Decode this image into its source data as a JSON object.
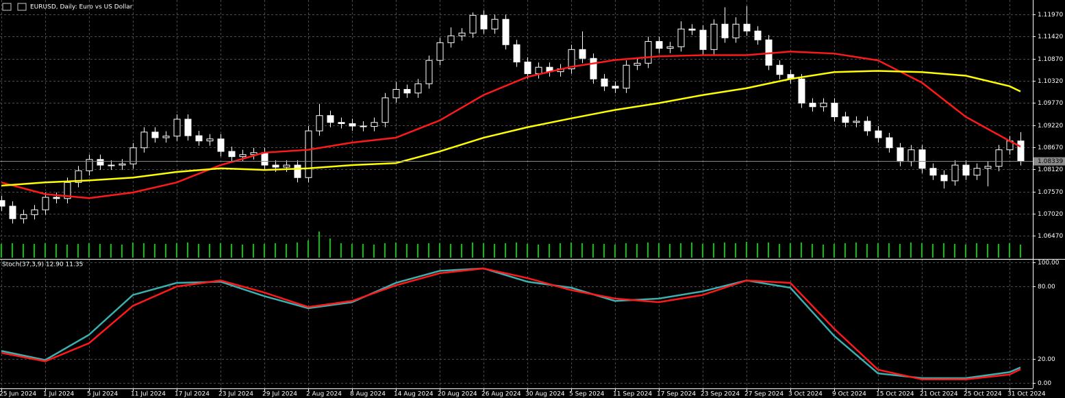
{
  "chart_data": [
    {
      "type": "candlestick",
      "title": "EURUSD, Daily:  Euro vs US Dollar",
      "categories": [
        "25 Jun 2024",
        null,
        null,
        null,
        "1 Jul 2024",
        null,
        null,
        null,
        "5 Jul 2024",
        null,
        null,
        null,
        "11 Jul 2024",
        null,
        null,
        null,
        "17 Jul 2024",
        null,
        null,
        null,
        "23 Jul 2024",
        null,
        null,
        null,
        "29 Jul 2024",
        null,
        null,
        null,
        "2 Aug 2024",
        null,
        null,
        null,
        "8 Aug 2024",
        null,
        null,
        null,
        "14 Aug 2024",
        null,
        null,
        null,
        "20 Aug 2024",
        null,
        null,
        null,
        "26 Aug 2024",
        null,
        null,
        null,
        "30 Aug 2024",
        null,
        null,
        null,
        "5 Sep 2024",
        null,
        null,
        null,
        "11 Sep 2024",
        null,
        null,
        null,
        "17 Sep 2024",
        null,
        null,
        null,
        "23 Sep 2024",
        null,
        null,
        null,
        "27 Sep 2024",
        null,
        null,
        null,
        "3 Oct 2024",
        null,
        null,
        null,
        "9 Oct 2024",
        null,
        null,
        null,
        "15 Oct 2024",
        null,
        null,
        null,
        "21 Oct 2024",
        null,
        null,
        null,
        "25 Oct 2024",
        null,
        null,
        null,
        "31 Oct 2024",
        null
      ],
      "ohlc": [
        [
          1.0735,
          1.0747,
          1.0709,
          1.0721
        ],
        [
          1.0721,
          1.0733,
          1.0678,
          1.069
        ],
        [
          1.069,
          1.0712,
          1.0678,
          1.07
        ],
        [
          1.07,
          1.0724,
          1.0688,
          1.0712
        ],
        [
          1.0712,
          1.0755,
          1.07,
          1.0743
        ],
        [
          1.0743,
          1.0755,
          1.0728,
          1.074
        ],
        [
          1.074,
          1.0792,
          1.0728,
          1.078
        ],
        [
          1.078,
          1.0821,
          1.0768,
          1.0809
        ],
        [
          1.0809,
          1.0849,
          1.0797,
          1.0837
        ],
        [
          1.0837,
          1.0849,
          1.0811,
          1.0823
        ],
        [
          1.0823,
          1.0835,
          1.0811,
          1.0823
        ],
        [
          1.0823,
          1.0838,
          1.0811,
          1.0826
        ],
        [
          1.0826,
          1.0878,
          1.0814,
          1.0866
        ],
        [
          1.0866,
          1.0917,
          1.0854,
          1.0905
        ],
        [
          1.0905,
          1.0917,
          1.0879,
          1.0891
        ],
        [
          1.0891,
          1.0907,
          1.0879,
          1.0895
        ],
        [
          1.0895,
          1.0949,
          1.0883,
          1.0937
        ],
        [
          1.0937,
          1.0949,
          1.0884,
          1.0896
        ],
        [
          1.0896,
          1.0908,
          1.0871,
          1.0883
        ],
        [
          1.0883,
          1.09,
          1.0871,
          1.0888
        ],
        [
          1.0888,
          1.09,
          1.0845,
          1.0857
        ],
        [
          1.0857,
          1.0869,
          1.0832,
          1.0844
        ],
        [
          1.0844,
          1.0861,
          1.0832,
          1.0849
        ],
        [
          1.0849,
          1.0866,
          1.0837,
          1.0854
        ],
        [
          1.0854,
          1.0866,
          1.0811,
          1.0823
        ],
        [
          1.0823,
          1.0835,
          1.0806,
          1.0818
        ],
        [
          1.0818,
          1.0835,
          1.0806,
          1.0823
        ],
        [
          1.0823,
          1.0835,
          1.078,
          1.0792
        ],
        [
          1.0792,
          1.092,
          1.078,
          1.0908
        ],
        [
          1.0908,
          1.0975,
          1.0896,
          1.0946
        ],
        [
          1.0946,
          1.0958,
          1.0917,
          1.0929
        ],
        [
          1.0929,
          1.0941,
          1.0914,
          1.0926
        ],
        [
          1.0926,
          1.0938,
          1.0908,
          1.092
        ],
        [
          1.092,
          1.0932,
          1.0907,
          1.0919
        ],
        [
          1.0919,
          1.0941,
          1.0907,
          1.0929
        ],
        [
          1.0929,
          1.1002,
          1.0917,
          1.099
        ],
        [
          1.099,
          1.103,
          1.0978,
          1.1011
        ],
        [
          1.1011,
          1.1023,
          1.099,
          1.1002
        ],
        [
          1.1002,
          1.1037,
          1.099,
          1.1025
        ],
        [
          1.1025,
          1.1095,
          1.1013,
          1.1083
        ],
        [
          1.1083,
          1.1139,
          1.1071,
          1.1127
        ],
        [
          1.1127,
          1.1165,
          1.1115,
          1.1144
        ],
        [
          1.1144,
          1.1163,
          1.1132,
          1.1151
        ],
        [
          1.1151,
          1.1202,
          1.1139,
          1.1195
        ],
        [
          1.1195,
          1.1207,
          1.1149,
          1.1161
        ],
        [
          1.1161,
          1.1197,
          1.1149,
          1.1185
        ],
        [
          1.1185,
          1.1197,
          1.111,
          1.1122
        ],
        [
          1.1122,
          1.1134,
          1.1067,
          1.1079
        ],
        [
          1.1079,
          1.1091,
          1.1038,
          1.105
        ],
        [
          1.105,
          1.1078,
          1.1038,
          1.1066
        ],
        [
          1.1066,
          1.1078,
          1.1043,
          1.1055
        ],
        [
          1.1055,
          1.1074,
          1.1043,
          1.1062
        ],
        [
          1.1062,
          1.1122,
          1.105,
          1.111
        ],
        [
          1.111,
          1.1155,
          1.1076,
          1.1088
        ],
        [
          1.1088,
          1.11,
          1.1025,
          1.1037
        ],
        [
          1.1037,
          1.1049,
          1.1007,
          1.1019
        ],
        [
          1.1019,
          1.1031,
          1.1002,
          1.1014
        ],
        [
          1.1014,
          1.1083,
          1.1002,
          1.1071
        ],
        [
          1.1071,
          1.1088,
          1.1059,
          1.1076
        ],
        [
          1.1076,
          1.1142,
          1.1064,
          1.113
        ],
        [
          1.113,
          1.1142,
          1.1101,
          1.1113
        ],
        [
          1.1113,
          1.1129,
          1.1101,
          1.1117
        ],
        [
          1.1117,
          1.118,
          1.1105,
          1.1161
        ],
        [
          1.1161,
          1.1173,
          1.1146,
          1.1158
        ],
        [
          1.1158,
          1.117,
          1.1098,
          1.111
        ],
        [
          1.111,
          1.1185,
          1.1098,
          1.1173
        ],
        [
          1.1173,
          1.1215,
          1.1127,
          1.1139
        ],
        [
          1.1139,
          1.119,
          1.1127,
          1.1173
        ],
        [
          1.1173,
          1.1218,
          1.1144,
          1.1156
        ],
        [
          1.1156,
          1.1168,
          1.1122,
          1.1134
        ],
        [
          1.1134,
          1.1146,
          1.1059,
          1.1071
        ],
        [
          1.1071,
          1.1083,
          1.1036,
          1.1048
        ],
        [
          1.1048,
          1.106,
          1.1025,
          1.1037
        ],
        [
          1.1037,
          1.1049,
          1.0965,
          1.0977
        ],
        [
          1.0977,
          1.0989,
          1.0956,
          1.0968
        ],
        [
          1.0968,
          1.0989,
          1.0956,
          1.0977
        ],
        [
          1.0977,
          1.0989,
          1.0931,
          1.0943
        ],
        [
          1.0943,
          1.0955,
          1.0917,
          1.0929
        ],
        [
          1.0929,
          1.0944,
          1.0917,
          1.0932
        ],
        [
          1.0932,
          1.0944,
          1.0896,
          1.0908
        ],
        [
          1.0908,
          1.092,
          1.0879,
          1.0891
        ],
        [
          1.0891,
          1.0903,
          1.0854,
          1.0866
        ],
        [
          1.0866,
          1.0878,
          1.082,
          1.0832
        ],
        [
          1.0832,
          1.0873,
          1.082,
          1.0861
        ],
        [
          1.0861,
          1.0873,
          1.0803,
          1.0815
        ],
        [
          1.0815,
          1.0827,
          1.0786,
          1.0798
        ],
        [
          1.0798,
          1.081,
          1.0765,
          1.0784
        ],
        [
          1.0784,
          1.0835,
          1.0772,
          1.0823
        ],
        [
          1.0823,
          1.0835,
          1.0786,
          1.0798
        ],
        [
          1.0798,
          1.0827,
          1.0786,
          1.0815
        ],
        [
          1.0815,
          1.0832,
          1.077,
          1.082
        ],
        [
          1.082,
          1.0873,
          1.0808,
          1.0861
        ],
        [
          1.0861,
          1.0895,
          1.0849,
          1.0883
        ],
        [
          1.0883,
          1.0905,
          1.0822,
          1.0834
        ]
      ],
      "up_color": "#000000",
      "down_color": "#ffffff",
      "wick_color": "#ffffff",
      "volume": {
        "color": "#00c800",
        "ylim": [
          0,
          60
        ],
        "values": [
          20,
          21,
          20,
          20,
          21,
          20,
          19,
          20,
          21,
          20,
          20,
          19,
          22,
          21,
          20,
          20,
          21,
          22,
          20,
          20,
          21,
          20,
          19,
          20,
          20,
          21,
          20,
          22,
          25,
          38,
          28,
          21,
          20,
          20,
          19,
          21,
          22,
          20,
          20,
          21,
          21,
          20,
          20,
          22,
          21,
          20,
          21,
          22,
          20,
          19,
          20,
          21,
          22,
          21,
          20,
          20,
          19,
          21,
          20,
          22,
          21,
          20,
          21,
          22,
          20,
          21,
          22,
          21,
          23,
          21,
          22,
          20,
          21,
          22,
          20,
          19,
          20,
          21,
          22,
          20,
          21,
          21,
          20,
          22,
          21,
          20,
          21,
          20,
          19,
          21,
          20,
          20,
          21,
          19
        ]
      },
      "ma": {
        "x": [
          0,
          4,
          8,
          12,
          16,
          20,
          24,
          28,
          32,
          36,
          40,
          44,
          48,
          52,
          56,
          60,
          64,
          68,
          72,
          76,
          80,
          84,
          88,
          92,
          93
        ],
        "series": [
          {
            "color": "#ff1a1a",
            "values": [
              1.078,
              1.0751,
              1.0741,
              1.0755,
              1.078,
              1.0823,
              1.0854,
              1.0861,
              1.0879,
              1.0891,
              1.0934,
              1.0997,
              1.1042,
              1.1067,
              1.1084,
              1.1093,
              1.1096,
              1.1096,
              1.1105,
              1.11,
              1.1083,
              1.1028,
              1.0943,
              1.0883,
              1.0869
            ]
          },
          {
            "color": "#ffff00",
            "values": [
              1.0772,
              1.078,
              1.0785,
              1.0792,
              1.0806,
              1.0815,
              1.0811,
              1.0815,
              1.0823,
              1.0828,
              1.0857,
              1.0891,
              1.0917,
              1.0939,
              1.096,
              1.0977,
              1.0997,
              1.1014,
              1.1037,
              1.1054,
              1.1057,
              1.1054,
              1.1045,
              1.1019,
              1.1006
            ]
          }
        ]
      },
      "ylim": [
        1.059,
        1.1233
      ],
      "yticks": [
        {
          "value": 1.1197,
          "label": "1.11970"
        },
        {
          "value": 1.1142,
          "label": "1.11420"
        },
        {
          "value": 1.1087,
          "label": "1.10870"
        },
        {
          "value": 1.1032,
          "label": "1.10320"
        },
        {
          "value": 1.0977,
          "label": "1.09770"
        },
        {
          "value": 1.0922,
          "label": "1.09220"
        },
        {
          "value": 1.0867,
          "label": "1.08670"
        },
        {
          "value": 1.0812,
          "label": "1.08120"
        },
        {
          "value": 1.0757,
          "label": "1.07570"
        },
        {
          "value": 1.0702,
          "label": "1.07020"
        },
        {
          "value": 1.0647,
          "label": "1.06470"
        }
      ],
      "current_price": 1.08339,
      "grid": true
    },
    {
      "type": "line",
      "title": "Stoch(37,3,9) 12.90 11.35",
      "x": [
        0,
        4,
        8,
        12,
        16,
        20,
        24,
        28,
        32,
        36,
        40,
        44,
        48,
        52,
        56,
        60,
        64,
        68,
        72,
        76,
        80,
        84,
        88,
        92,
        93
      ],
      "series": [
        {
          "color": "#3cb0b0",
          "values": [
            26.6,
            19,
            40,
            73,
            83,
            84,
            72,
            62,
            67,
            83,
            93,
            95,
            84,
            79,
            68,
            70,
            76,
            85,
            79,
            39,
            8,
            4,
            4,
            9,
            12.9
          ]
        },
        {
          "color": "#ff1a1a",
          "values": [
            25,
            18,
            33,
            64,
            80,
            85,
            75,
            63,
            68,
            81,
            91,
            95,
            87,
            77,
            70,
            67,
            73,
            85,
            83,
            45,
            11,
            3,
            3,
            7,
            11.35
          ]
        }
      ],
      "ylim": [
        -4.5,
        102.3
      ],
      "yticks": [
        {
          "value": 100,
          "label": "100.00"
        },
        {
          "value": 80,
          "label": "80.00"
        },
        {
          "value": 20,
          "label": "20.00"
        },
        {
          "value": 0,
          "label": "0.00"
        }
      ],
      "grid": true
    }
  ]
}
